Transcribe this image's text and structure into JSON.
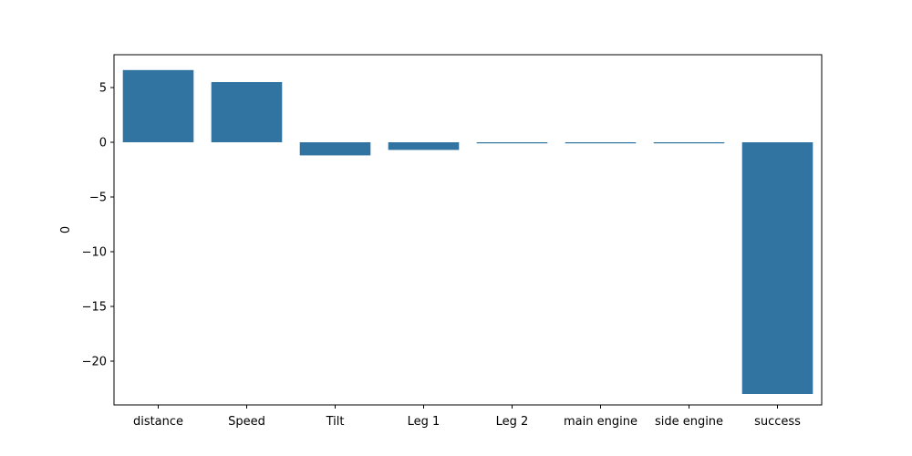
{
  "chart_data": {
    "type": "bar",
    "categories": [
      "distance",
      "Speed",
      "Tilt",
      "Leg 1",
      "Leg 2",
      "main engine",
      "side engine",
      "success"
    ],
    "values": [
      6.6,
      5.5,
      -1.2,
      -0.7,
      -0.1,
      -0.1,
      -0.1,
      -23.0
    ],
    "xlabel": "",
    "ylabel": "0",
    "ylim": [
      -24.0,
      8.0
    ],
    "yticks": [
      5,
      0,
      -5,
      -10,
      -15,
      -20
    ],
    "ytick_labels": [
      "5",
      "0",
      "−5",
      "−10",
      "−15",
      "−20"
    ],
    "bar_color": "#3274a1",
    "grid": false,
    "legend": "none"
  }
}
